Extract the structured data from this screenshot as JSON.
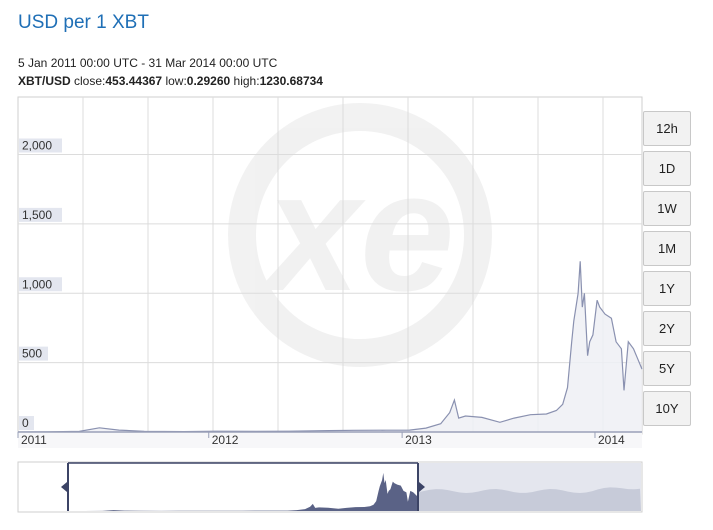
{
  "header": {
    "title": "USD per 1 XBT",
    "date_range": "5 Jan 2011 00:00 UTC - 31 Mar 2014 00:00 UTC",
    "pair_label": "XBT/USD",
    "close_label": "close:",
    "close_value": "453.44367",
    "low_label": "low:",
    "low_value": "0.29260",
    "high_label": "high:",
    "high_value": "1230.68734"
  },
  "range_buttons": [
    "12h",
    "1D",
    "1W",
    "1M",
    "1Y",
    "2Y",
    "5Y",
    "10Y"
  ],
  "colors": {
    "line": "#8a91b0",
    "fill": "#eef0f5",
    "grid": "#dcdcdc",
    "label_bg": "#e3e6ef",
    "navigator_fill": "#5a6286",
    "navigator_right": "#c7cbd9",
    "title": "#1f6fb6"
  },
  "chart_data": {
    "type": "area",
    "title": "USD per 1 XBT",
    "xlabel": "",
    "ylabel": "",
    "x_ticks": [
      "2011",
      "2012",
      "2013",
      "2014"
    ],
    "y_ticks": [
      0,
      500,
      1000,
      1500,
      2000
    ],
    "y_tick_labels": [
      "0",
      "500",
      "1,000",
      "1,500",
      "2,000"
    ],
    "xlim": [
      "2011-01-05",
      "2014-03-31"
    ],
    "ylim": [
      0,
      2400
    ],
    "grid": true,
    "series": [
      {
        "x": [
          "2011-01-05",
          "2011-03-01",
          "2011-05-01",
          "2011-06-08",
          "2011-07-15",
          "2011-09-01",
          "2011-11-15",
          "2012-01-15",
          "2012-04-01",
          "2012-06-01",
          "2012-08-15",
          "2012-10-01",
          "2012-12-01",
          "2013-01-15",
          "2013-02-15",
          "2013-03-15",
          "2013-04-01",
          "2013-04-10",
          "2013-04-18",
          "2013-05-01",
          "2013-06-01",
          "2013-07-05",
          "2013-08-01",
          "2013-09-01",
          "2013-10-01",
          "2013-10-20",
          "2013-11-01",
          "2013-11-10",
          "2013-11-18",
          "2013-11-22",
          "2013-11-30",
          "2013-12-04",
          "2013-12-08",
          "2013-12-12",
          "2013-12-18",
          "2013-12-22",
          "2013-12-28",
          "2014-01-05",
          "2014-01-10",
          "2014-01-20",
          "2014-02-01",
          "2014-02-10",
          "2014-02-20",
          "2014-02-25",
          "2014-03-05",
          "2014-03-15",
          "2014-03-31"
        ],
        "y": [
          0.3,
          0.9,
          4,
          30,
          14,
          5,
          3,
          6,
          5,
          6,
          10,
          12,
          13,
          14,
          28,
          60,
          140,
          230,
          100,
          115,
          105,
          70,
          100,
          125,
          130,
          155,
          200,
          320,
          650,
          800,
          1000,
          1230,
          900,
          1000,
          550,
          650,
          700,
          950,
          900,
          850,
          820,
          650,
          600,
          300,
          650,
          600,
          453
        ]
      }
    ],
    "navigator": {
      "selection_start": "2011-01-05",
      "selection_end": "2014-03-31"
    }
  }
}
